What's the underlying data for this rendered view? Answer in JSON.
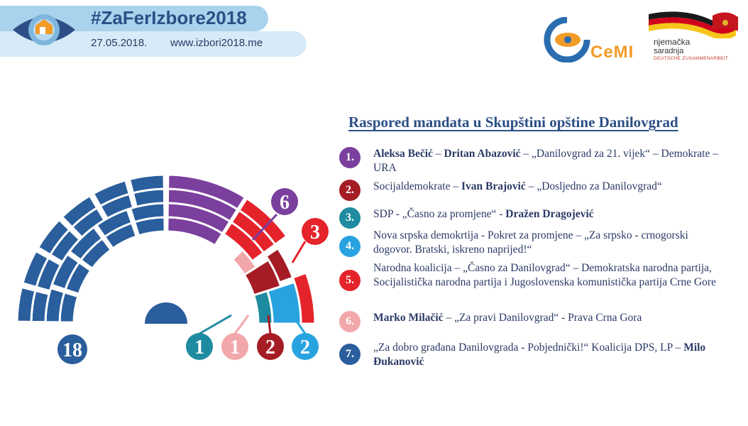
{
  "header": {
    "hashtag": "#ZaFerIzbore2018",
    "date": "27.05.2018.",
    "website": "www.izbori2018.me"
  },
  "logos": {
    "cemi": "CeMI",
    "german_line1": "njemačka",
    "german_line2": "saradnja",
    "german_line3": "DEUTSCHE ZUSAMMENARBEIT"
  },
  "chart_data": {
    "type": "parliament",
    "title": "Raspored mandata u Skupštini opštine Danilovgrad",
    "total_seats": 33,
    "parties": [
      {
        "rank": 1,
        "seats": 6,
        "color": "#7b3f9e",
        "label": "6"
      },
      {
        "rank": 2,
        "seats": 2,
        "color": "#a51c24",
        "label": "2"
      },
      {
        "rank": 3,
        "seats": 1,
        "color": "#1f8ba0",
        "label": "1"
      },
      {
        "rank": 4,
        "seats": 2,
        "color": "#29a3e0",
        "label": "2"
      },
      {
        "rank": 5,
        "seats": 3,
        "color": "#e5232b",
        "label": "3"
      },
      {
        "rank": 6,
        "seats": 1,
        "color": "#f2a7aa",
        "label": "1"
      },
      {
        "rank": 7,
        "seats": 18,
        "color": "#2a5e9c",
        "label": "18"
      }
    ]
  },
  "legend": [
    {
      "num": "1.",
      "color": "#7b3f9e",
      "parts": [
        {
          "t": "Aleksa Bečić",
          "b": true
        },
        {
          "t": " – ",
          "b": false
        },
        {
          "t": "Dritan Abazović",
          "b": true
        },
        {
          "t": " – „Danilovgrad za 21. vijek“ – Demokrate – URA",
          "b": false
        }
      ]
    },
    {
      "num": "2.",
      "color": "#a51c24",
      "parts": [
        {
          "t": "Socijaldemokrate – ",
          "b": false
        },
        {
          "t": "Ivan Brajović",
          "b": true
        },
        {
          "t": " – „Dosljedno za Danilovgrad“",
          "b": false
        }
      ]
    },
    {
      "num": "3.",
      "color": "#1f8ba0",
      "parts": [
        {
          "t": "SDP - „Časno za promjene“ - ",
          "b": false
        },
        {
          "t": "Dražen Dragojević",
          "b": true
        }
      ]
    },
    {
      "num": "4.",
      "color": "#29a3e0",
      "parts": [
        {
          "t": "Nova srpska demokrtija - Pokret za promjene – „Za srpsko - crnogorski dogovor. Bratski, iskreno naprijed!“",
          "b": false
        }
      ]
    },
    {
      "num": "5.",
      "color": "#e5232b",
      "parts": [
        {
          "t": "Narodna koalicija – „Časno za Danilovgrad“ – Demokratska narodna partija, Socijalistička narodna partija i Jugoslovenska komunistička partija Crne Gore",
          "b": false
        }
      ]
    },
    {
      "num": "6.",
      "color": "#f2a7aa",
      "parts": [
        {
          "t": "Marko Milačić",
          "b": true
        },
        {
          "t": " – „Za pravi Danilovgrad“ - Prava Crna Gora",
          "b": false
        }
      ]
    },
    {
      "num": "7.",
      "color": "#2a5e9c",
      "parts": [
        {
          "t": "„Za dobro građana Danilovgrada - Pobjednički!“ Koalicija DPS, LP – ",
          "b": false
        },
        {
          "t": "Milo Đukanović",
          "b": true
        }
      ]
    }
  ]
}
